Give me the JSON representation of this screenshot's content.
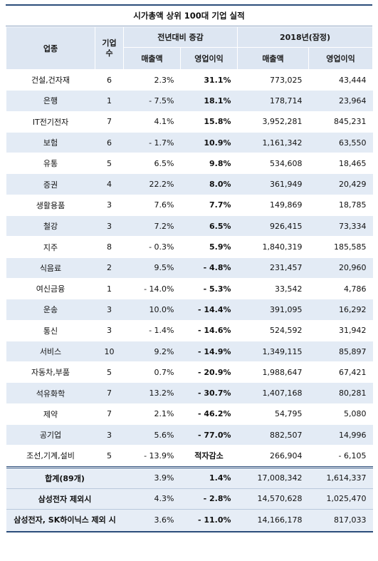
{
  "title": "시가총액 상위 100대 기업 실적",
  "header": {
    "sector": "업종",
    "count": "기업\n수",
    "yoy": "전년대비 증감",
    "y2018": "2018년(잠정)",
    "sales": "매출액",
    "op": "영업이익"
  },
  "rows": [
    {
      "sector": "건설,건자재",
      "n": "6",
      "ds": "2.3%",
      "dop": "31.1%",
      "sales": "773,025",
      "op": "43,444"
    },
    {
      "sector": "은행",
      "n": "1",
      "ds": "- 7.5%",
      "dop": "18.1%",
      "sales": "178,714",
      "op": "23,964"
    },
    {
      "sector": "IT전기전자",
      "n": "7",
      "ds": "4.1%",
      "dop": "15.8%",
      "sales": "3,952,281",
      "op": "845,231"
    },
    {
      "sector": "보험",
      "n": "6",
      "ds": "- 1.7%",
      "dop": "10.9%",
      "sales": "1,161,342",
      "op": "63,550"
    },
    {
      "sector": "유통",
      "n": "5",
      "ds": "6.5%",
      "dop": "9.8%",
      "sales": "534,608",
      "op": "18,465"
    },
    {
      "sector": "증권",
      "n": "4",
      "ds": "22.2%",
      "dop": "8.0%",
      "sales": "361,949",
      "op": "20,429"
    },
    {
      "sector": "생활용품",
      "n": "3",
      "ds": "7.6%",
      "dop": "7.7%",
      "sales": "149,869",
      "op": "18,785"
    },
    {
      "sector": "철강",
      "n": "3",
      "ds": "7.2%",
      "dop": "6.5%",
      "sales": "926,415",
      "op": "73,334"
    },
    {
      "sector": "지주",
      "n": "8",
      "ds": "- 0.3%",
      "dop": "5.9%",
      "sales": "1,840,319",
      "op": "185,585"
    },
    {
      "sector": "식음료",
      "n": "2",
      "ds": "9.5%",
      "dop": "- 4.8%",
      "sales": "231,457",
      "op": "20,960"
    },
    {
      "sector": "여신금융",
      "n": "1",
      "ds": "- 14.0%",
      "dop": "- 5.3%",
      "sales": "33,542",
      "op": "4,786"
    },
    {
      "sector": "운송",
      "n": "3",
      "ds": "10.0%",
      "dop": "- 14.4%",
      "sales": "391,095",
      "op": "16,292"
    },
    {
      "sector": "통신",
      "n": "3",
      "ds": "- 1.4%",
      "dop": "- 14.6%",
      "sales": "524,592",
      "op": "31,942"
    },
    {
      "sector": "서비스",
      "n": "10",
      "ds": "9.2%",
      "dop": "- 14.9%",
      "sales": "1,349,115",
      "op": "85,897"
    },
    {
      "sector": "자동차,부품",
      "n": "5",
      "ds": "0.7%",
      "dop": "- 20.9%",
      "sales": "1,988,647",
      "op": "67,421"
    },
    {
      "sector": "석유화학",
      "n": "7",
      "ds": "13.2%",
      "dop": "- 30.7%",
      "sales": "1,407,168",
      "op": "80,281"
    },
    {
      "sector": "제약",
      "n": "7",
      "ds": "2.1%",
      "dop": "- 46.2%",
      "sales": "54,795",
      "op": "5,080"
    },
    {
      "sector": "공기업",
      "n": "3",
      "ds": "5.6%",
      "dop": "- 77.0%",
      "sales": "882,507",
      "op": "14,996"
    },
    {
      "sector": "조선,기계,설비",
      "n": "5",
      "ds": "- 13.9%",
      "dop": "적자감소",
      "sales": "266,904",
      "op": "- 6,105"
    }
  ],
  "totals": [
    {
      "label": "합계(89개)",
      "ds": "3.9%",
      "dop": "1.4%",
      "sales": "17,008,342",
      "op": "1,614,337"
    },
    {
      "label": "삼성전자 제외시",
      "ds": "4.3%",
      "dop": "- 2.8%",
      "sales": "14,570,628",
      "op": "1,025,470"
    },
    {
      "label": "삼성전자, SK하이닉스 제외 시",
      "ds": "3.6%",
      "dop": "- 11.0%",
      "sales": "14,166,178",
      "op": "817,033"
    }
  ]
}
